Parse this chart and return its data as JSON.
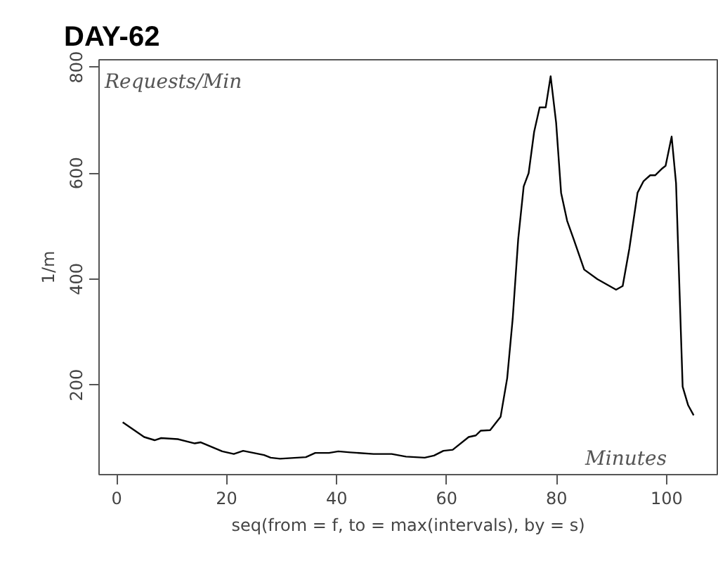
{
  "chart_data": {
    "type": "line",
    "title": "DAY-62",
    "xlabel": "seq(from = f, to = max(intervals), by = s)",
    "ylabel": "1/m",
    "annotations": [
      "Requests/Min",
      "Minutes"
    ],
    "x": [
      1.1,
      5,
      6.9,
      8.1,
      11.1,
      14.2,
      15.3,
      19.2,
      21.3,
      23,
      26.8,
      28,
      29.7,
      34.4,
      36.1,
      38.6,
      40.3,
      42.5,
      46.7,
      50,
      52.6,
      56,
      57.7,
      59.4,
      61.1,
      64,
      65.3,
      66.2,
      67.9,
      69.8,
      71,
      72,
      73,
      74,
      74.9,
      75.9,
      76.9,
      78,
      78.9,
      79.9,
      80.8,
      81.9,
      83.1,
      85,
      87.4,
      90.8,
      92,
      93.2,
      94.7,
      95.8,
      97,
      97.9,
      99.2,
      99.8,
      100.9,
      101.7,
      102.9,
      103.9,
      104.9
    ],
    "series": [
      {
        "color": "#000000",
        "values": [
          130,
          102,
          96,
          100,
          98,
          90,
          92,
          75,
          70,
          76,
          68,
          63,
          61,
          64,
          72,
          72,
          75,
          73,
          70,
          70,
          65,
          63,
          67,
          76,
          78,
          102,
          105,
          114,
          115,
          140,
          213,
          325,
          475,
          575,
          600,
          678,
          724,
          724,
          783,
          695,
          563,
          510,
          475,
          418,
          400,
          380,
          387,
          457,
          563,
          585,
          596,
          596,
          609,
          614,
          669,
          581,
          197,
          162,
          143
        ]
      }
    ],
    "xlim": [
      -3.2,
      109.2
    ],
    "ylim": [
      31,
      814
    ],
    "xticks": [
      0,
      20,
      40,
      60,
      80,
      100
    ],
    "yticks": [
      200,
      400,
      600,
      800
    ],
    "grid": false,
    "marker": "none",
    "line_style": "solid"
  }
}
